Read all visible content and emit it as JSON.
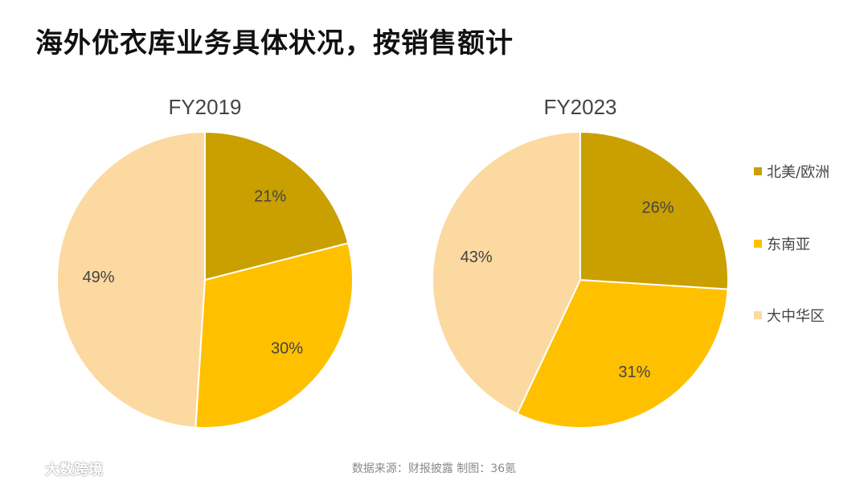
{
  "title": "海外优衣库业务具体状况，按销售额计",
  "source": "数据来源：财报披露 制图：36氪",
  "watermark": "大数跨境",
  "chart_data": [
    {
      "type": "pie",
      "title": "FY2019",
      "slices": [
        {
          "label": "北美/欧洲",
          "value": 21,
          "display": "21%"
        },
        {
          "label": "东南亚",
          "value": 30,
          "display": "30%"
        },
        {
          "label": "大中华区",
          "value": 49,
          "display": "49%"
        }
      ]
    },
    {
      "type": "pie",
      "title": "FY2023",
      "slices": [
        {
          "label": "北美/欧洲",
          "value": 26,
          "display": "26%"
        },
        {
          "label": "东南亚",
          "value": 31,
          "display": "31%"
        },
        {
          "label": "大中华区",
          "value": 43,
          "display": "43%"
        }
      ]
    }
  ],
  "legend": {
    "placement": "right",
    "items": [
      {
        "label": "北美/欧洲",
        "color": "#C9A000"
      },
      {
        "label": "东南亚",
        "color": "#FFC000"
      },
      {
        "label": "大中华区",
        "color": "#FCD9A0"
      }
    ]
  }
}
